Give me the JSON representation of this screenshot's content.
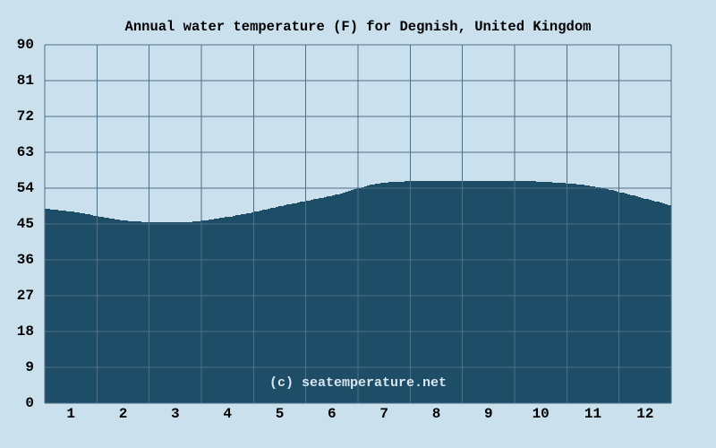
{
  "chart_data": {
    "type": "area",
    "title": "Annual water temperature (F) for Degnish, United Kingdom",
    "xlabel": "",
    "ylabel": "",
    "categories": [
      1,
      2,
      3,
      4,
      5,
      6,
      7,
      8,
      9,
      10,
      11,
      12
    ],
    "values": [
      48.1,
      45.9,
      45.4,
      46.8,
      49.5,
      52.2,
      55.4,
      55.8,
      55.9,
      55.6,
      54.4,
      51.3
    ],
    "year_start_value": 48.8,
    "year_end_value": 49.6,
    "series_name": "Water temperature (F)",
    "x_ticks": [
      "1",
      "2",
      "3",
      "4",
      "5",
      "6",
      "7",
      "8",
      "9",
      "10",
      "11",
      "12"
    ],
    "y_ticks": [
      90,
      81,
      72,
      63,
      54,
      45,
      36,
      27,
      18,
      9,
      0
    ],
    "ylim": [
      0,
      90
    ],
    "grid": true,
    "legend": false,
    "watermark": "(c) seatemperature.net"
  },
  "colors": {
    "background": "#cae0ed",
    "area_fill": "#1e4d67",
    "gridline": "#4e7086",
    "text": "#000000",
    "watermark_text": "#d8e6ee"
  }
}
